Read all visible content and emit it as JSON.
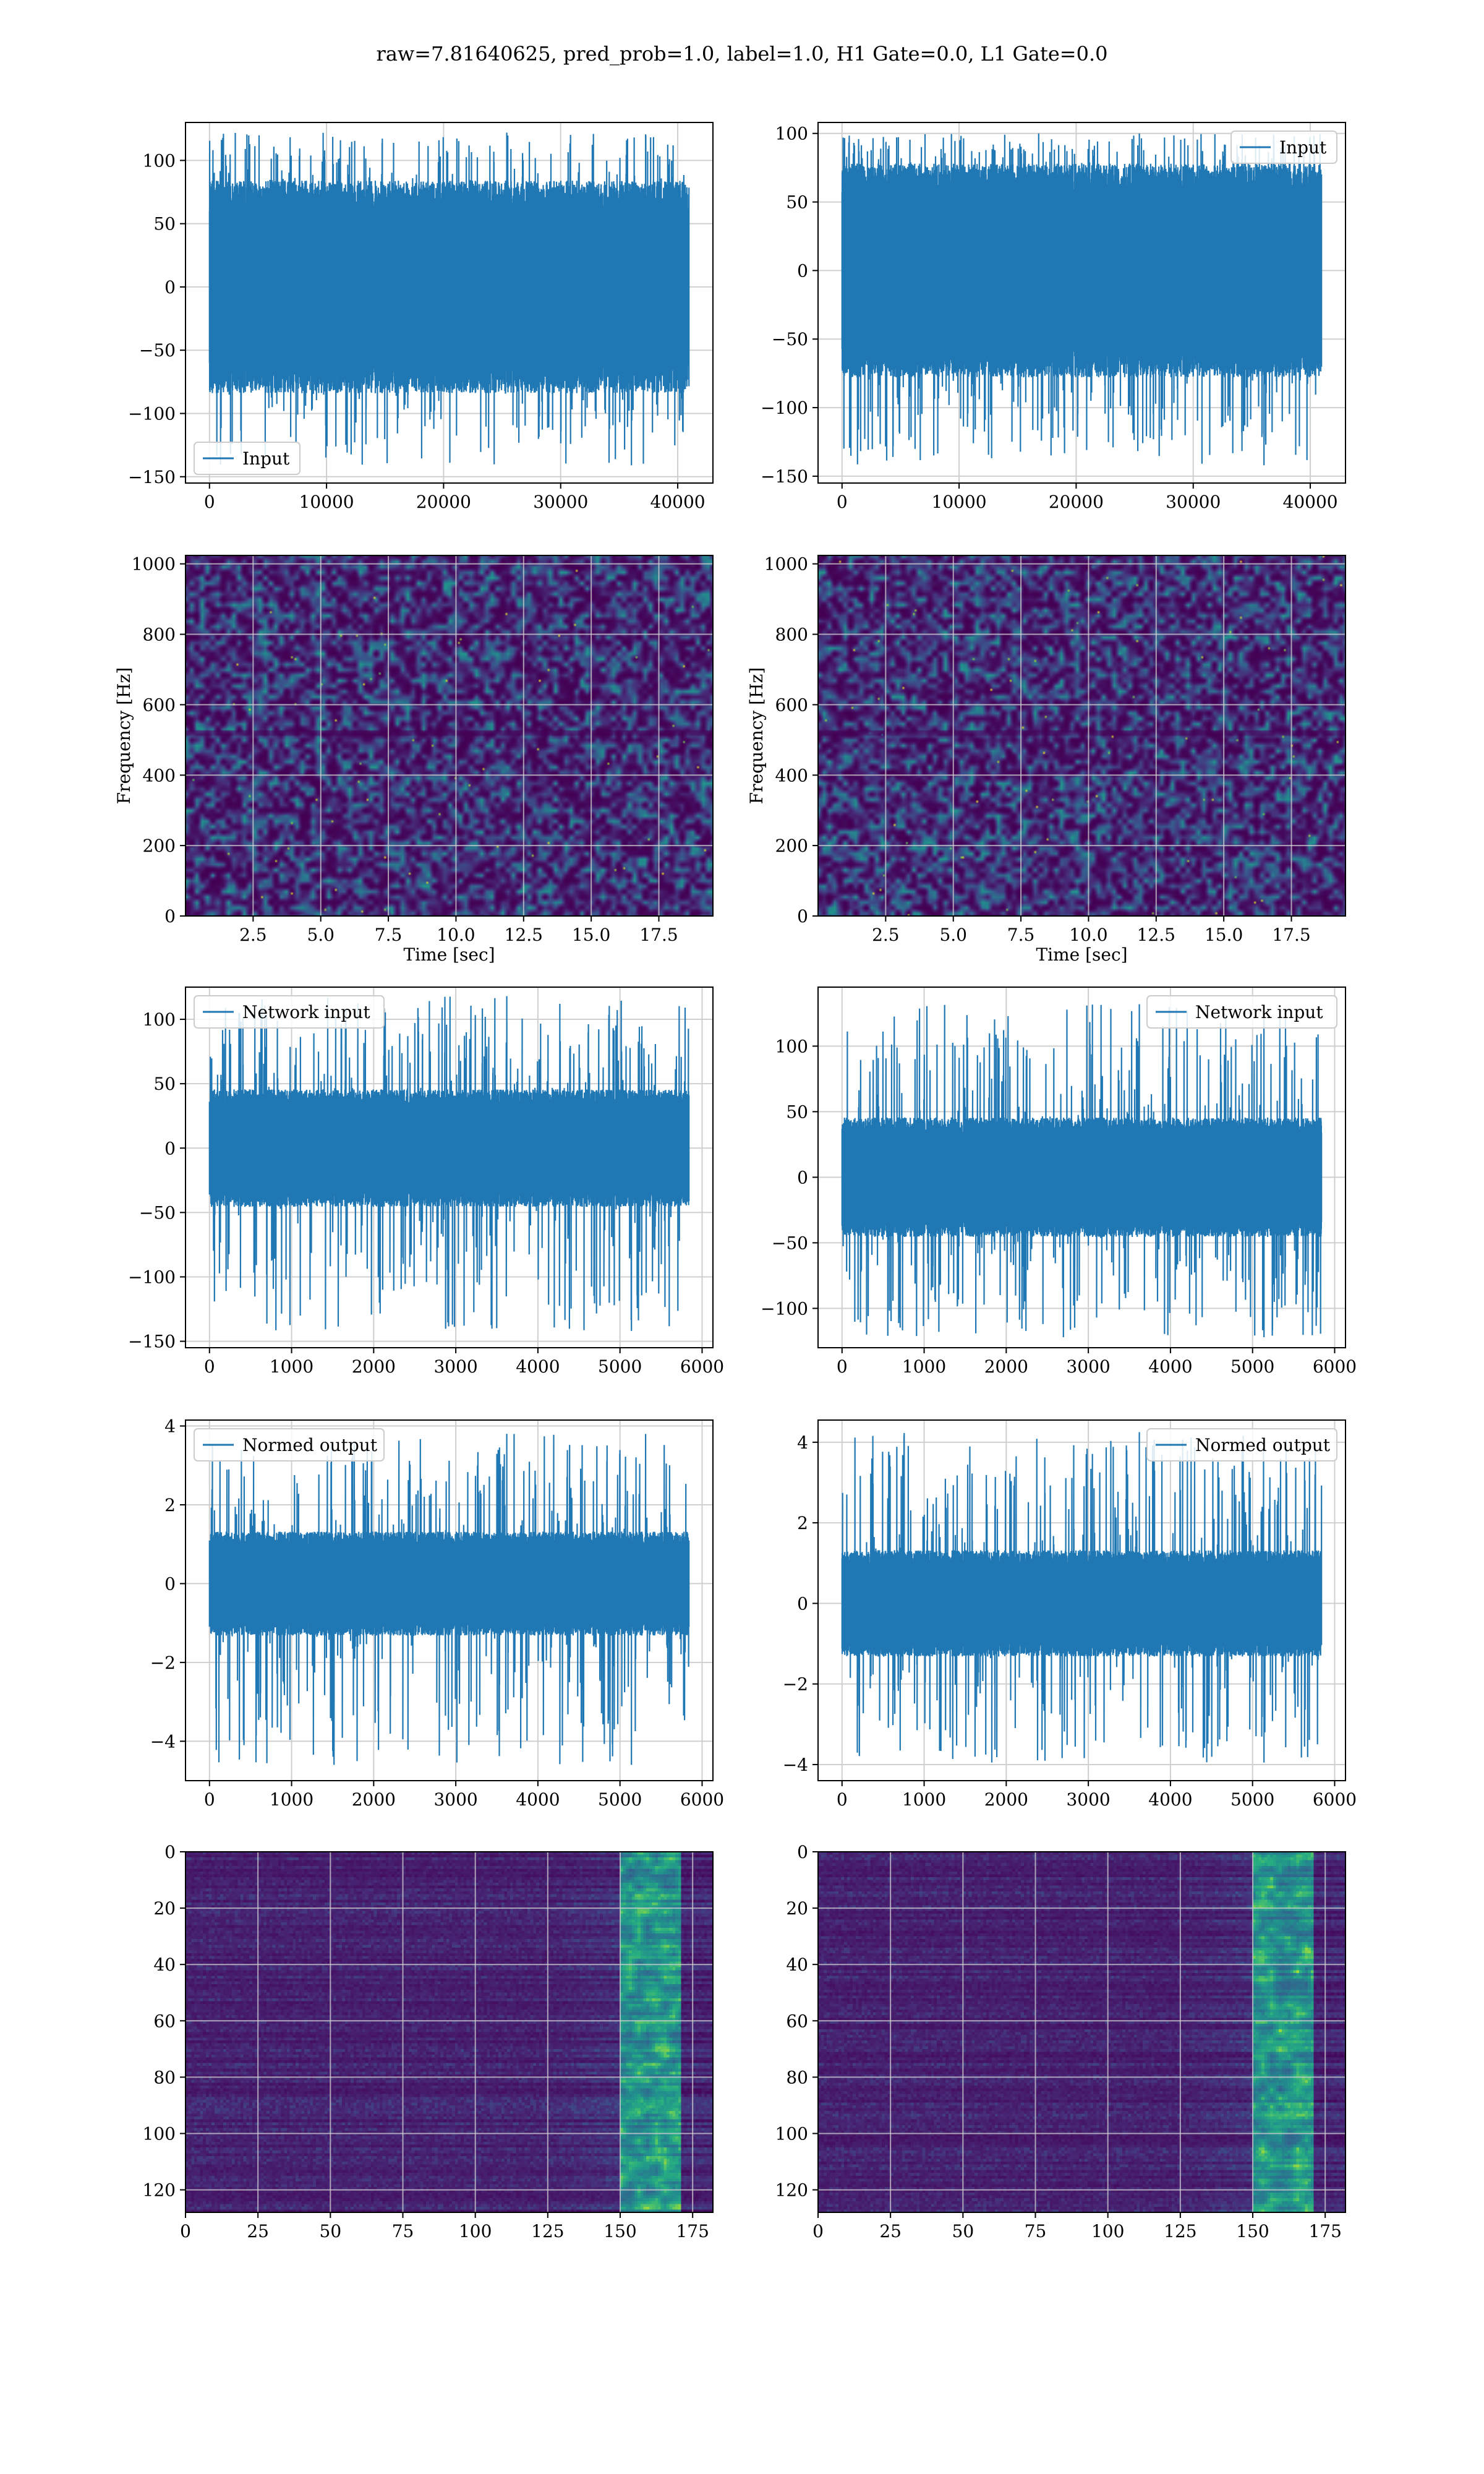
{
  "suptitle": "raw=7.81640625, pred_prob=1.0, label=1.0, H1 Gate=0.0, L1 Gate=0.0",
  "colors": {
    "line": "#1f77b4",
    "grid": "#b0b0b0",
    "viridis_low": "#440154",
    "viridis_mid": "#21918c",
    "viridis_high": "#fde725"
  },
  "chart_data": [
    {
      "id": "input-h1",
      "type": "line",
      "row": 0,
      "col": 0,
      "legend": "Input",
      "legend_loc": "lower-left",
      "x_range": [
        0,
        40960
      ],
      "xlim": [
        -2048,
        43008
      ],
      "ylim": [
        -155,
        130
      ],
      "xticks": [
        0,
        10000,
        20000,
        30000,
        40000
      ],
      "yticks": [
        -150,
        -100,
        -50,
        0,
        50,
        100
      ],
      "envelope": {
        "core": 70,
        "peak_max": 122,
        "peak_min": -141
      }
    },
    {
      "id": "input-l1",
      "type": "line",
      "row": 0,
      "col": 1,
      "legend": "Input",
      "legend_loc": "upper-right",
      "x_range": [
        0,
        40960
      ],
      "xlim": [
        -2048,
        43008
      ],
      "ylim": [
        -155,
        108
      ],
      "xticks": [
        0,
        10000,
        20000,
        30000,
        40000
      ],
      "yticks": [
        -150,
        -100,
        -50,
        0,
        50,
        100
      ],
      "envelope": {
        "core": 65,
        "peak_max": 100,
        "peak_min": -142
      }
    },
    {
      "id": "spectrogram-h1",
      "type": "heatmap",
      "row": 1,
      "col": 0,
      "xlabel": "Time [sec]",
      "ylabel": "Frequency [Hz]",
      "xlim": [
        0,
        19.5
      ],
      "ylim": [
        0,
        1024
      ],
      "xticks": [
        2.5,
        5.0,
        7.5,
        10.0,
        12.5,
        15.0,
        17.5
      ],
      "xtick_labels": [
        "2.5",
        "5.0",
        "7.5",
        "10.0",
        "12.5",
        "15.0",
        "17.5"
      ],
      "yticks": [
        0,
        200,
        400,
        600,
        800,
        1000
      ]
    },
    {
      "id": "spectrogram-l1",
      "type": "heatmap",
      "row": 1,
      "col": 1,
      "xlabel": "Time [sec]",
      "ylabel": "Frequency [Hz]",
      "xlim": [
        0,
        19.5
      ],
      "ylim": [
        0,
        1024
      ],
      "xticks": [
        2.5,
        5.0,
        7.5,
        10.0,
        12.5,
        15.0,
        17.5
      ],
      "xtick_labels": [
        "2.5",
        "5.0",
        "7.5",
        "10.0",
        "12.5",
        "15.0",
        "17.5"
      ],
      "yticks": [
        0,
        200,
        400,
        600,
        800,
        1000
      ]
    },
    {
      "id": "network-input-h1",
      "type": "line",
      "row": 2,
      "col": 0,
      "legend": "Network input",
      "legend_loc": "upper-left",
      "x_range": [
        0,
        5840
      ],
      "xlim": [
        -292,
        6132
      ],
      "ylim": [
        -155,
        125
      ],
      "xticks": [
        0,
        1000,
        2000,
        3000,
        4000,
        5000,
        6000
      ],
      "yticks": [
        -150,
        -100,
        -50,
        0,
        50,
        100
      ],
      "envelope": {
        "core": 38,
        "peak_max": 118,
        "peak_min": -142
      }
    },
    {
      "id": "network-input-l1",
      "type": "line",
      "row": 2,
      "col": 1,
      "legend": "Network input",
      "legend_loc": "upper-right",
      "x_range": [
        0,
        5840
      ],
      "xlim": [
        -292,
        6132
      ],
      "ylim": [
        -130,
        145
      ],
      "xticks": [
        0,
        1000,
        2000,
        3000,
        4000,
        5000,
        6000
      ],
      "yticks": [
        -100,
        -50,
        0,
        50,
        100
      ],
      "envelope": {
        "core": 38,
        "peak_max": 132,
        "peak_min": -122
      }
    },
    {
      "id": "normed-output-h1",
      "type": "line",
      "row": 3,
      "col": 0,
      "legend": "Normed output",
      "legend_loc": "upper-left",
      "x_range": [
        0,
        5840
      ],
      "xlim": [
        -292,
        6132
      ],
      "ylim": [
        -5.0,
        4.15
      ],
      "xticks": [
        0,
        1000,
        2000,
        3000,
        4000,
        5000,
        6000
      ],
      "yticks": [
        -4,
        -2,
        0,
        2,
        4
      ],
      "envelope": {
        "core": 1.1,
        "peak_max": 3.8,
        "peak_min": -4.6
      }
    },
    {
      "id": "normed-output-l1",
      "type": "line",
      "row": 3,
      "col": 1,
      "legend": "Normed output",
      "legend_loc": "upper-right",
      "x_range": [
        0,
        5840
      ],
      "xlim": [
        -292,
        6132
      ],
      "ylim": [
        -4.4,
        4.55
      ],
      "xticks": [
        0,
        1000,
        2000,
        3000,
        4000,
        5000,
        6000
      ],
      "yticks": [
        -4,
        -2,
        0,
        2,
        4
      ],
      "envelope": {
        "core": 1.1,
        "peak_max": 4.25,
        "peak_min": -3.95
      }
    },
    {
      "id": "feature-map-h1",
      "type": "heatmap",
      "row": 4,
      "col": 0,
      "xlim": [
        0,
        182
      ],
      "ylim": [
        128,
        0
      ],
      "xticks": [
        0,
        25,
        50,
        75,
        100,
        125,
        150,
        175
      ],
      "yticks": [
        0,
        20,
        40,
        60,
        80,
        100,
        120
      ],
      "bright_band": [
        150,
        170
      ]
    },
    {
      "id": "feature-map-l1",
      "type": "heatmap",
      "row": 4,
      "col": 1,
      "xlim": [
        0,
        182
      ],
      "ylim": [
        128,
        0
      ],
      "xticks": [
        0,
        25,
        50,
        75,
        100,
        125,
        150,
        175
      ],
      "yticks": [
        0,
        20,
        40,
        60,
        80,
        100,
        120
      ],
      "bright_band": [
        150,
        170
      ]
    }
  ]
}
